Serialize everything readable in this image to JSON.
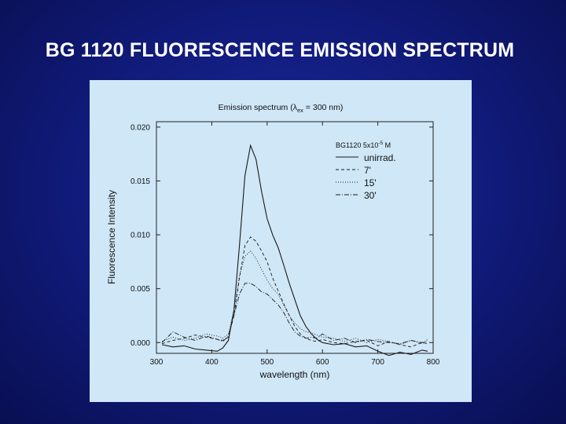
{
  "slide": {
    "title": "BG 1120 FLUORESCENCE EMISSION SPECTRUM"
  },
  "colors": {
    "background": "#101a78",
    "panel": "#cfe7f7",
    "ink": "#111111"
  },
  "chart_data": {
    "type": "line",
    "title_prefix": "Emission spectrum (",
    "title_lambda": "λ",
    "title_subscript": "ex",
    "title_suffix": " = 300 nm)",
    "xlabel": "wavelength (nm)",
    "ylabel": "Fluorescence Intensity",
    "xlim": [
      300,
      800
    ],
    "ylim": [
      -0.001,
      0.0205
    ],
    "xticks": [
      "300",
      "400",
      "500",
      "600",
      "700",
      "800"
    ],
    "yticks": [
      "0.000",
      "0.005",
      "0.010",
      "0.015",
      "0.020"
    ],
    "legend": {
      "title_prefix": "BG1120  5x10",
      "title_superscript": "-5",
      "title_suffix": " M",
      "position": "top-right"
    },
    "x": [
      310,
      330,
      350,
      370,
      390,
      410,
      420,
      430,
      440,
      450,
      460,
      470,
      480,
      490,
      500,
      510,
      520,
      530,
      540,
      550,
      560,
      570,
      580,
      590,
      600,
      620,
      640,
      660,
      680,
      700,
      720,
      740,
      760,
      780,
      790
    ],
    "series": [
      {
        "name": "unirrad.",
        "dash": "none",
        "values": [
          -0.0002,
          -0.0004,
          -0.0003,
          -0.0006,
          -0.0007,
          -0.0008,
          -0.0005,
          0.0002,
          0.003,
          0.009,
          0.0155,
          0.0183,
          0.017,
          0.014,
          0.0115,
          0.01,
          0.0088,
          0.0072,
          0.0055,
          0.004,
          0.0025,
          0.0015,
          0.0008,
          0.0003,
          0.0,
          -0.0002,
          -0.0001,
          -0.0004,
          -0.0003,
          -0.0008,
          -0.0012,
          -0.0009,
          -0.0011,
          -0.0007,
          -0.0008
        ]
      },
      {
        "name": "7'",
        "dash": "4,3",
        "values": [
          -0.0001,
          0.0002,
          0.0004,
          0.0007,
          0.0005,
          0.0003,
          0.0002,
          0.0005,
          0.0025,
          0.006,
          0.009,
          0.0098,
          0.0094,
          0.0085,
          0.0075,
          0.006,
          0.0048,
          0.0036,
          0.0025,
          0.0015,
          0.0008,
          0.0004,
          0.0002,
          0.0001,
          0.0003,
          0.0,
          -0.0001,
          0.0001,
          0.0002,
          -0.0003,
          0.0001,
          -0.0002,
          -0.0004,
          0.0,
          -0.0001
        ]
      },
      {
        "name": "15'",
        "dash": "1,2",
        "values": [
          0.0001,
          0.0005,
          0.0002,
          0.0004,
          0.0008,
          0.0006,
          0.0004,
          0.0008,
          0.003,
          0.0062,
          0.008,
          0.0085,
          0.0078,
          0.0068,
          0.0058,
          0.005,
          0.0045,
          0.0035,
          0.0025,
          0.0018,
          0.0013,
          0.001,
          0.0009,
          0.0007,
          0.0005,
          0.0004,
          0.0001,
          0.0004,
          0.0,
          0.0003,
          0.0001,
          -0.0002,
          0.0002,
          -0.0001,
          0.0003
        ]
      },
      {
        "name": "30'",
        "dash": "6,2,1,2",
        "values": [
          0.0,
          0.001,
          0.0005,
          0.0002,
          0.0006,
          0.0003,
          0.0001,
          0.0006,
          0.0025,
          0.0045,
          0.0055,
          0.0055,
          0.0052,
          0.0047,
          0.0045,
          0.004,
          0.0035,
          0.0028,
          0.0018,
          0.001,
          0.0006,
          0.0004,
          0.0005,
          0.0004,
          0.0008,
          0.0002,
          0.0004,
          0.0,
          0.0003,
          0.0001,
          0.0,
          -0.0001,
          0.0002,
          0.0,
          0.0001
        ]
      }
    ]
  }
}
